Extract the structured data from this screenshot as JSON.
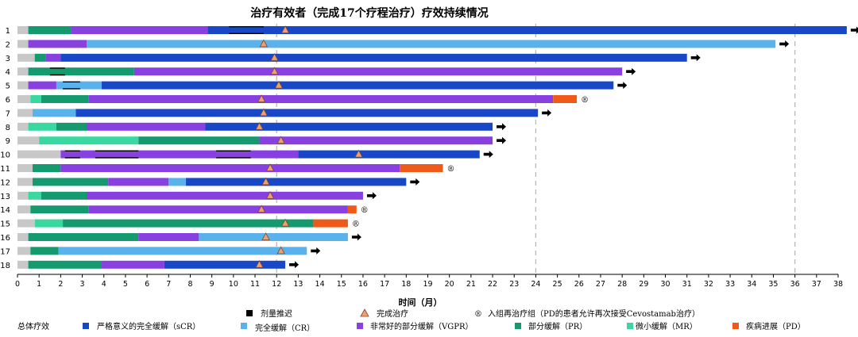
{
  "chart_data": {
    "type": "bar",
    "title": "治疗有效者（完成17个疗程治疗）疗效持续情况",
    "xlabel": "时间（月）",
    "ylabel": "",
    "xlim": [
      0,
      38
    ],
    "x_ticks": [
      0,
      1,
      2,
      3,
      4,
      5,
      6,
      7,
      8,
      9,
      10,
      11,
      12,
      13,
      14,
      15,
      16,
      17,
      18,
      19,
      20,
      21,
      22,
      23,
      24,
      25,
      26,
      27,
      28,
      29,
      30,
      31,
      32,
      33,
      34,
      35,
      36,
      37,
      38
    ],
    "reference_lines": [
      12,
      24,
      36
    ],
    "response_colors": {
      "gray": "#c8c8c8",
      "sCR": "#1848c8",
      "CR": "#5ab2ec",
      "VGPR": "#8840e0",
      "PR": "#149a6e",
      "MR": "#38d8a0",
      "PD": "#f05a18"
    },
    "patients": [
      {
        "id": "1",
        "segments": [
          {
            "r": "gray",
            "s": 0,
            "e": 0.5
          },
          {
            "r": "PR",
            "s": 0.5,
            "e": 2.5
          },
          {
            "r": "VGPR",
            "s": 2.5,
            "e": 8.8
          },
          {
            "r": "sCR",
            "s": 8.8,
            "e": 38.4
          }
        ],
        "delays": [
          [
            9.8,
            11.4
          ]
        ],
        "complete": 12.4,
        "ongoing": true,
        "rechallenge": false
      },
      {
        "id": "2",
        "segments": [
          {
            "r": "gray",
            "s": 0,
            "e": 0.5
          },
          {
            "r": "VGPR",
            "s": 0.5,
            "e": 3.2
          },
          {
            "r": "CR",
            "s": 3.2,
            "e": 35.1
          }
        ],
        "delays": [],
        "complete": 11.4,
        "ongoing": true,
        "rechallenge": false
      },
      {
        "id": "3",
        "segments": [
          {
            "r": "gray",
            "s": 0,
            "e": 0.8
          },
          {
            "r": "PR",
            "s": 0.8,
            "e": 1.3
          },
          {
            "r": "VGPR",
            "s": 1.3,
            "e": 2.0
          },
          {
            "r": "sCR",
            "s": 2.0,
            "e": 31.0
          }
        ],
        "delays": [],
        "complete": 11.9,
        "ongoing": true,
        "rechallenge": false
      },
      {
        "id": "4",
        "segments": [
          {
            "r": "gray",
            "s": 0,
            "e": 0.5
          },
          {
            "r": "PR",
            "s": 0.5,
            "e": 5.4
          },
          {
            "r": "VGPR",
            "s": 5.4,
            "e": 28.0
          }
        ],
        "delays": [
          [
            1.5,
            2.2
          ]
        ],
        "complete": 11.9,
        "ongoing": true,
        "rechallenge": false
      },
      {
        "id": "5",
        "segments": [
          {
            "r": "gray",
            "s": 0,
            "e": 0.5
          },
          {
            "r": "VGPR",
            "s": 0.5,
            "e": 1.8
          },
          {
            "r": "CR",
            "s": 1.8,
            "e": 3.9
          },
          {
            "r": "sCR",
            "s": 3.9,
            "e": 27.6
          }
        ],
        "delays": [
          [
            2.1,
            2.9
          ]
        ],
        "complete": 12.1,
        "ongoing": true,
        "rechallenge": false
      },
      {
        "id": "6",
        "segments": [
          {
            "r": "gray",
            "s": 0,
            "e": 0.6
          },
          {
            "r": "MR",
            "s": 0.6,
            "e": 1.1
          },
          {
            "r": "PR",
            "s": 1.1,
            "e": 3.3
          },
          {
            "r": "VGPR",
            "s": 3.3,
            "e": 24.8
          },
          {
            "r": "PD",
            "s": 24.8,
            "e": 25.9
          }
        ],
        "delays": [],
        "complete": 11.3,
        "ongoing": false,
        "rechallenge": true
      },
      {
        "id": "7",
        "segments": [
          {
            "r": "gray",
            "s": 0,
            "e": 0.7
          },
          {
            "r": "CR",
            "s": 0.7,
            "e": 2.7
          },
          {
            "r": "sCR",
            "s": 2.7,
            "e": 24.1
          }
        ],
        "delays": [],
        "complete": 11.4,
        "ongoing": true,
        "rechallenge": false
      },
      {
        "id": "8",
        "segments": [
          {
            "r": "gray",
            "s": 0,
            "e": 0.5
          },
          {
            "r": "MR",
            "s": 0.5,
            "e": 1.8
          },
          {
            "r": "PR",
            "s": 1.8,
            "e": 3.2
          },
          {
            "r": "VGPR",
            "s": 3.2,
            "e": 8.7
          },
          {
            "r": "sCR",
            "s": 8.7,
            "e": 22.0
          }
        ],
        "delays": [],
        "complete": 11.2,
        "ongoing": true,
        "rechallenge": false
      },
      {
        "id": "9",
        "segments": [
          {
            "r": "gray",
            "s": 0,
            "e": 1.0
          },
          {
            "r": "MR",
            "s": 1.0,
            "e": 5.6
          },
          {
            "r": "PR",
            "s": 5.6,
            "e": 11.2
          },
          {
            "r": "VGPR",
            "s": 11.2,
            "e": 22.0
          }
        ],
        "delays": [],
        "complete": 12.2,
        "ongoing": true,
        "rechallenge": false
      },
      {
        "id": "10",
        "segments": [
          {
            "r": "gray",
            "s": 0,
            "e": 2.0
          },
          {
            "r": "VGPR",
            "s": 2.0,
            "e": 13.0
          },
          {
            "r": "sCR",
            "s": 13.0,
            "e": 21.4
          }
        ],
        "delays": [
          [
            2.2,
            2.9
          ],
          [
            3.6,
            5.6
          ],
          [
            9.2,
            10.8
          ]
        ],
        "complete": 15.8,
        "ongoing": true,
        "rechallenge": false
      },
      {
        "id": "11",
        "segments": [
          {
            "r": "gray",
            "s": 0,
            "e": 0.7
          },
          {
            "r": "PR",
            "s": 0.7,
            "e": 2.0
          },
          {
            "r": "VGPR",
            "s": 2.0,
            "e": 17.7
          },
          {
            "r": "PD",
            "s": 17.7,
            "e": 19.7
          }
        ],
        "delays": [],
        "complete": 11.7,
        "ongoing": false,
        "rechallenge": true
      },
      {
        "id": "12",
        "segments": [
          {
            "r": "gray",
            "s": 0,
            "e": 0.7
          },
          {
            "r": "PR",
            "s": 0.7,
            "e": 4.2
          },
          {
            "r": "VGPR",
            "s": 4.2,
            "e": 7.0
          },
          {
            "r": "CR",
            "s": 7.0,
            "e": 7.8
          },
          {
            "r": "sCR",
            "s": 7.8,
            "e": 18.0
          }
        ],
        "delays": [],
        "complete": 11.5,
        "ongoing": true,
        "rechallenge": false
      },
      {
        "id": "13",
        "segments": [
          {
            "r": "gray",
            "s": 0,
            "e": 0.5
          },
          {
            "r": "MR",
            "s": 0.5,
            "e": 1.1
          },
          {
            "r": "PR",
            "s": 1.1,
            "e": 3.2
          },
          {
            "r": "VGPR",
            "s": 3.2,
            "e": 16.0
          }
        ],
        "delays": [],
        "complete": 11.7,
        "ongoing": true,
        "rechallenge": false
      },
      {
        "id": "14",
        "segments": [
          {
            "r": "gray",
            "s": 0,
            "e": 0.6
          },
          {
            "r": "PR",
            "s": 0.6,
            "e": 3.3
          },
          {
            "r": "VGPR",
            "s": 3.3,
            "e": 15.3
          },
          {
            "r": "PD",
            "s": 15.3,
            "e": 15.7
          }
        ],
        "delays": [],
        "complete": 11.3,
        "ongoing": false,
        "rechallenge": true
      },
      {
        "id": "15",
        "segments": [
          {
            "r": "gray",
            "s": 0,
            "e": 0.8
          },
          {
            "r": "MR",
            "s": 0.8,
            "e": 2.1
          },
          {
            "r": "PR",
            "s": 2.1,
            "e": 13.7
          },
          {
            "r": "PD",
            "s": 13.7,
            "e": 15.3
          }
        ],
        "delays": [],
        "complete": 12.4,
        "ongoing": false,
        "rechallenge": true
      },
      {
        "id": "16",
        "segments": [
          {
            "r": "gray",
            "s": 0,
            "e": 0.5
          },
          {
            "r": "PR",
            "s": 0.5,
            "e": 5.6
          },
          {
            "r": "VGPR",
            "s": 5.6,
            "e": 8.4
          },
          {
            "r": "CR",
            "s": 8.4,
            "e": 15.3
          }
        ],
        "delays": [],
        "complete": 11.5,
        "ongoing": true,
        "rechallenge": false
      },
      {
        "id": "17",
        "segments": [
          {
            "r": "gray",
            "s": 0,
            "e": 0.6
          },
          {
            "r": "PR",
            "s": 0.6,
            "e": 1.9
          },
          {
            "r": "CR",
            "s": 1.9,
            "e": 13.4
          }
        ],
        "delays": [],
        "complete": 12.2,
        "ongoing": true,
        "rechallenge": false
      },
      {
        "id": "18",
        "segments": [
          {
            "r": "gray",
            "s": 0,
            "e": 0.5
          },
          {
            "r": "PR",
            "s": 0.5,
            "e": 3.9
          },
          {
            "r": "VGPR",
            "s": 3.9,
            "e": 6.8
          },
          {
            "r": "sCR",
            "s": 6.8,
            "e": 12.4
          }
        ],
        "delays": [],
        "complete": 11.2,
        "ongoing": true,
        "rechallenge": false
      }
    ],
    "legend": {
      "group_label": "总体疗效",
      "dose_delay": "剂量推迟",
      "completed": "完成治疗",
      "rechallenge_symbol": "®",
      "rechallenge": "入组再治疗组（PD的患者允许再次接受Cevostamab治疗）",
      "sCR": "严格意义的完全缓解（sCR）",
      "CR": "完全缓解（CR）",
      "VGPR": "非常好的部分缓解（VGPR）",
      "PR": "部分缓解（PR）",
      "MR": "微小缓解（MR）",
      "PD": "疾病进展（PD）"
    }
  }
}
